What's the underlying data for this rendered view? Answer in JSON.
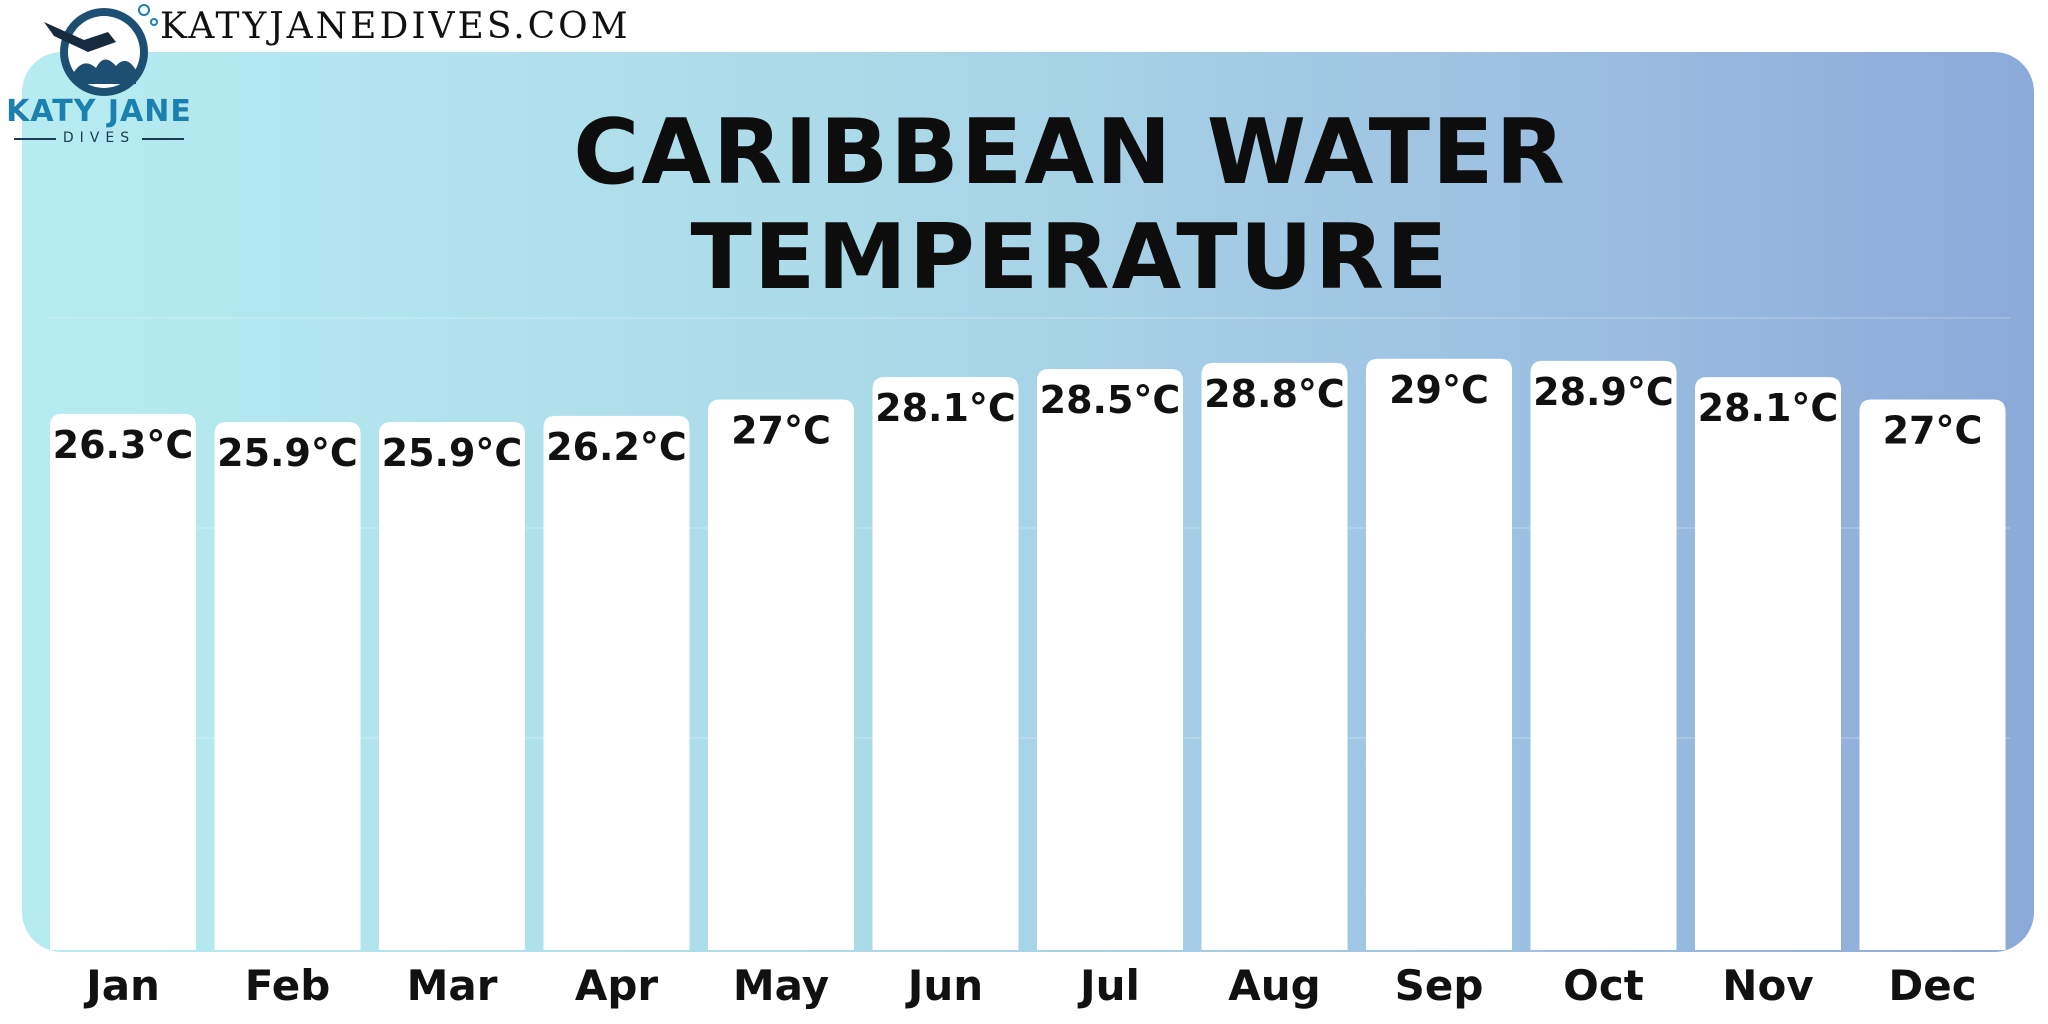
{
  "header": {
    "site_url": "KATYJANEDIVES.COM",
    "logo_name": "KATY JANE",
    "logo_sub": "DIVES"
  },
  "colors": {
    "gradient_start": "#b6ecf1",
    "gradient_end": "#8caad9",
    "bar": "#ffffff",
    "text": "#111111",
    "logo_blue": "#1b7fb0"
  },
  "chart_data": {
    "type": "bar",
    "title": "CARIBBEAN WATER TEMPERATURE",
    "categories": [
      "Jan",
      "Feb",
      "Mar",
      "Apr",
      "May",
      "Jun",
      "Jul",
      "Aug",
      "Sep",
      "Oct",
      "Nov",
      "Dec"
    ],
    "values": [
      26.3,
      25.9,
      25.9,
      26.2,
      27,
      28.1,
      28.5,
      28.8,
      29,
      28.9,
      28.1,
      27
    ],
    "data_labels": [
      "26.3°C",
      "25.9°C",
      "25.9°C",
      "26.2°C",
      "27°C",
      "28.1°C",
      "28.5°C",
      "28.8°C",
      "29°C",
      "28.9°C",
      "28.1°C",
      "27°C"
    ],
    "unit": "°C",
    "xlabel": "",
    "ylabel": "",
    "ylim": [
      0,
      31
    ],
    "grid": true,
    "legend": "none"
  }
}
